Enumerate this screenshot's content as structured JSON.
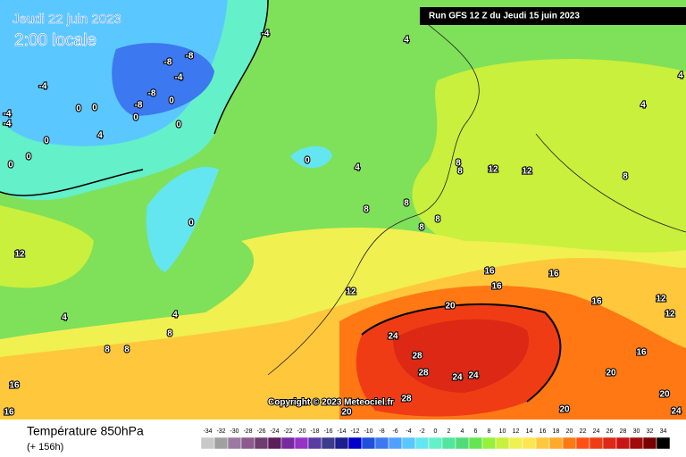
{
  "header": {
    "date": "Jeudi 22 juin 2023",
    "time": "2:00 locale",
    "run": "Run GFS 12 Z du Jeudi 15 juin 2023",
    "copyright": "Copyright © 2023 Meteociel.fr"
  },
  "legend": {
    "title": "Température 850hPa",
    "subtitle": "(+ 156h)",
    "steps": [
      {
        "value": -34,
        "color": "#c8c8c8"
      },
      {
        "value": -32,
        "color": "#a0a0a0"
      },
      {
        "value": -30,
        "color": "#9a7aa0"
      },
      {
        "value": -28,
        "color": "#8c5a8c"
      },
      {
        "value": -26,
        "color": "#6e3c6e"
      },
      {
        "value": -24,
        "color": "#5a1e5a"
      },
      {
        "value": -22,
        "color": "#7828a0"
      },
      {
        "value": -20,
        "color": "#9632c8"
      },
      {
        "value": -18,
        "color": "#5a3ca0"
      },
      {
        "value": -16,
        "color": "#3c3c8c"
      },
      {
        "value": -14,
        "color": "#1e1e8c"
      },
      {
        "value": -12,
        "color": "#0000c8"
      },
      {
        "value": -10,
        "color": "#1e50dc"
      },
      {
        "value": -8,
        "color": "#3c78f0"
      },
      {
        "value": -6,
        "color": "#50a0ff"
      },
      {
        "value": -4,
        "color": "#5ac8ff"
      },
      {
        "value": -2,
        "color": "#64e6f0"
      },
      {
        "value": 0,
        "color": "#64f0c8"
      },
      {
        "value": 2,
        "color": "#50e6a0"
      },
      {
        "value": 4,
        "color": "#50dc78"
      },
      {
        "value": 6,
        "color": "#64e650"
      },
      {
        "value": 8,
        "color": "#96f03c"
      },
      {
        "value": 10,
        "color": "#c8f03c"
      },
      {
        "value": 12,
        "color": "#f0f050"
      },
      {
        "value": 14,
        "color": "#ffe650"
      },
      {
        "value": 16,
        "color": "#ffc83c"
      },
      {
        "value": 18,
        "color": "#ffaa28"
      },
      {
        "value": 20,
        "color": "#ff7814"
      },
      {
        "value": 22,
        "color": "#ff5014"
      },
      {
        "value": 24,
        "color": "#f03c14"
      },
      {
        "value": 26,
        "color": "#dc2814"
      },
      {
        "value": 28,
        "color": "#c81414"
      },
      {
        "value": 30,
        "color": "#a00a0a"
      },
      {
        "value": 32,
        "color": "#780000"
      },
      {
        "value": 34,
        "color": "#000000"
      }
    ]
  },
  "contour_labels": [
    -4,
    4,
    -8,
    -8,
    -4,
    -4,
    -8,
    -8,
    0,
    0,
    0,
    0,
    0,
    4,
    -4,
    -4,
    0,
    0,
    0,
    0,
    4,
    0,
    4,
    4,
    8,
    8,
    12,
    12,
    8,
    8,
    8,
    8,
    8,
    12,
    12,
    16,
    16,
    16,
    16,
    12,
    12,
    20,
    4,
    4,
    8,
    8,
    8,
    24,
    28,
    28,
    24,
    24,
    16,
    20,
    20,
    16,
    16,
    20,
    20,
    24,
    28
  ]
}
